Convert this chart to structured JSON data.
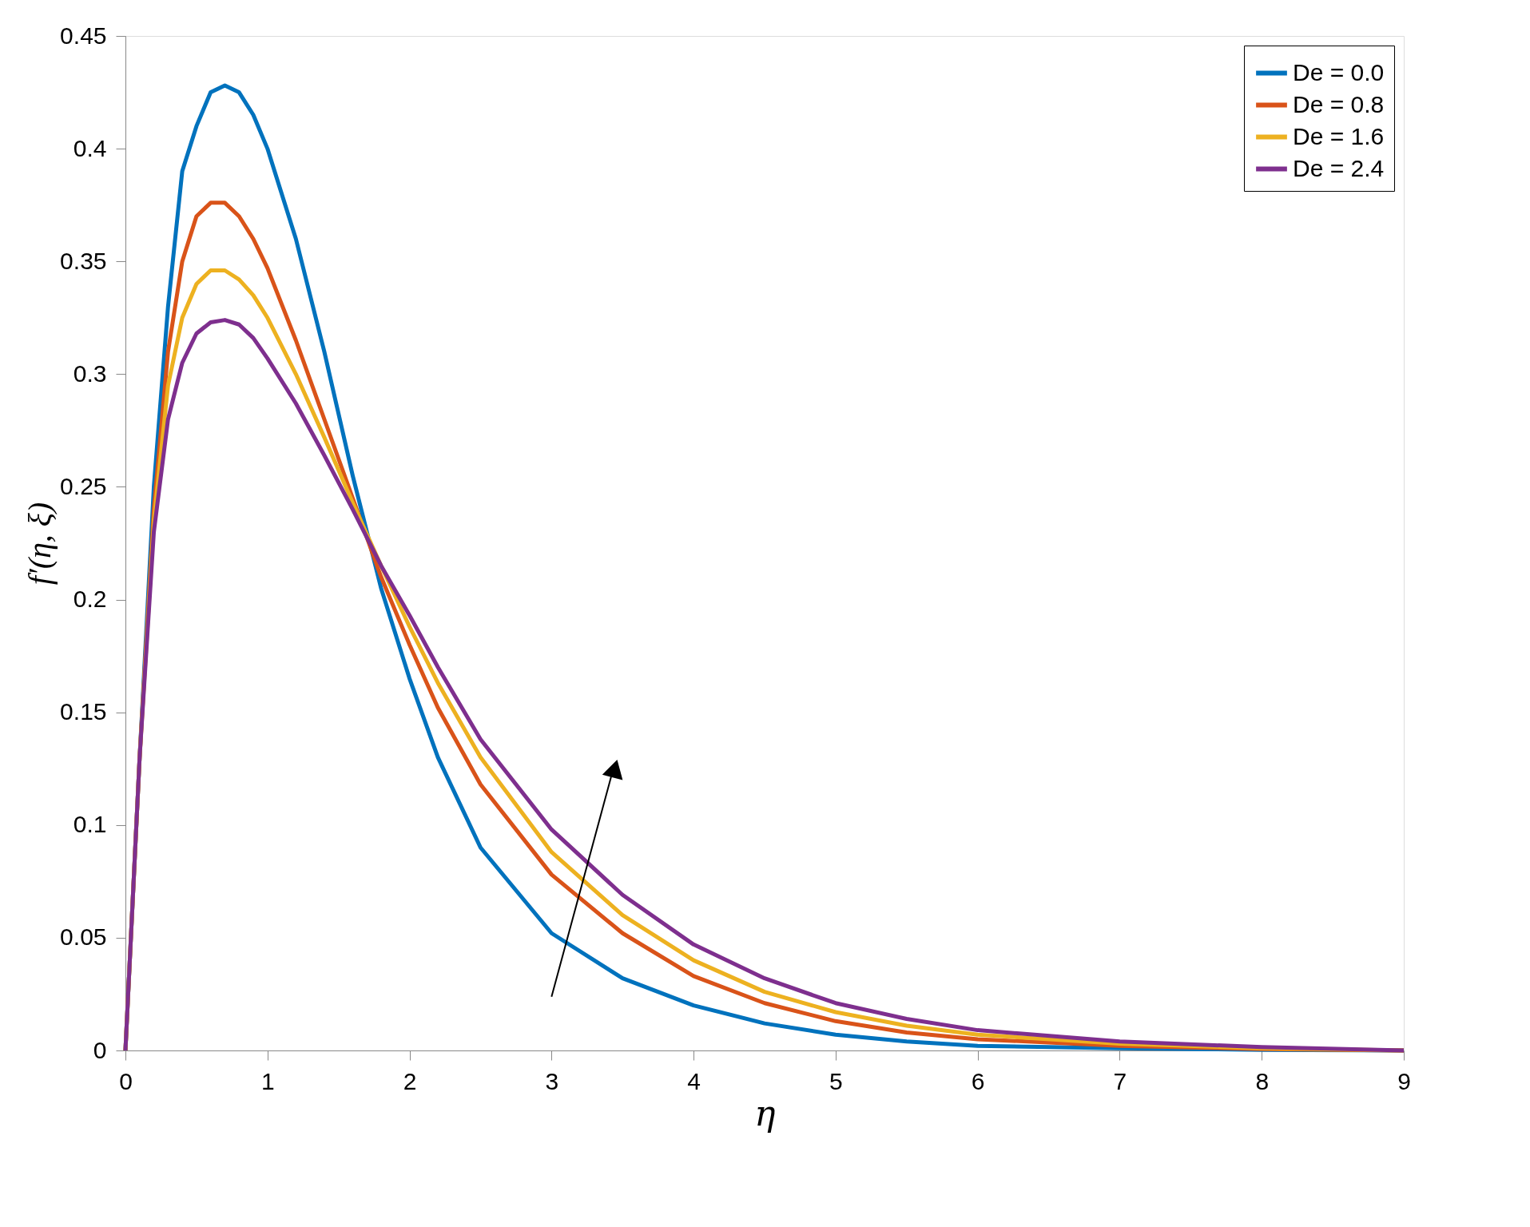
{
  "chart_data": {
    "type": "line",
    "xlabel": "η",
    "ylabel": "f′(η, ξ)",
    "x": [
      0,
      0.1,
      0.2,
      0.3,
      0.4,
      0.5,
      0.6,
      0.7,
      0.8,
      0.9,
      1.0,
      1.2,
      1.4,
      1.6,
      1.8,
      2.0,
      2.2,
      2.5,
      3,
      3.5,
      4,
      4.5,
      5,
      5.5,
      6,
      7,
      8,
      9
    ],
    "series": [
      {
        "name": "De = 0.0",
        "color": "#0072bd",
        "values": [
          0,
          0.13,
          0.25,
          0.33,
          0.39,
          0.41,
          0.425,
          0.428,
          0.425,
          0.415,
          0.4,
          0.36,
          0.31,
          0.255,
          0.205,
          0.165,
          0.13,
          0.09,
          0.052,
          0.032,
          0.02,
          0.012,
          0.007,
          0.004,
          0.002,
          0.001,
          0.0003,
          0
        ]
      },
      {
        "name": "De = 0.8",
        "color": "#d95319",
        "values": [
          0,
          0.13,
          0.24,
          0.31,
          0.35,
          0.37,
          0.376,
          0.376,
          0.37,
          0.36,
          0.347,
          0.315,
          0.28,
          0.245,
          0.21,
          0.18,
          0.152,
          0.118,
          0.078,
          0.052,
          0.033,
          0.021,
          0.013,
          0.008,
          0.005,
          0.002,
          0.0006,
          0
        ]
      },
      {
        "name": "De = 1.6",
        "color": "#edb120",
        "values": [
          0,
          0.13,
          0.235,
          0.295,
          0.325,
          0.34,
          0.346,
          0.346,
          0.342,
          0.335,
          0.325,
          0.3,
          0.272,
          0.243,
          0.215,
          0.188,
          0.163,
          0.13,
          0.088,
          0.06,
          0.04,
          0.026,
          0.017,
          0.011,
          0.007,
          0.003,
          0.001,
          0
        ]
      },
      {
        "name": "De = 2.4",
        "color": "#7e2f8e",
        "values": [
          0,
          0.13,
          0.23,
          0.28,
          0.305,
          0.318,
          0.323,
          0.324,
          0.322,
          0.316,
          0.307,
          0.287,
          0.264,
          0.24,
          0.215,
          0.193,
          0.17,
          0.138,
          0.098,
          0.069,
          0.047,
          0.032,
          0.021,
          0.014,
          0.009,
          0.004,
          0.0015,
          0
        ]
      }
    ],
    "xlim": [
      0,
      9
    ],
    "xticks": [
      0,
      1,
      2,
      3,
      4,
      5,
      6,
      7,
      8,
      9
    ],
    "ylim": [
      0,
      0.45
    ],
    "yticks": [
      0,
      0.05,
      0.1,
      0.15,
      0.2,
      0.25,
      0.3,
      0.35,
      0.4,
      0.45
    ],
    "legend": "top right",
    "grid": false,
    "marker": "none",
    "line_style": "solid"
  }
}
